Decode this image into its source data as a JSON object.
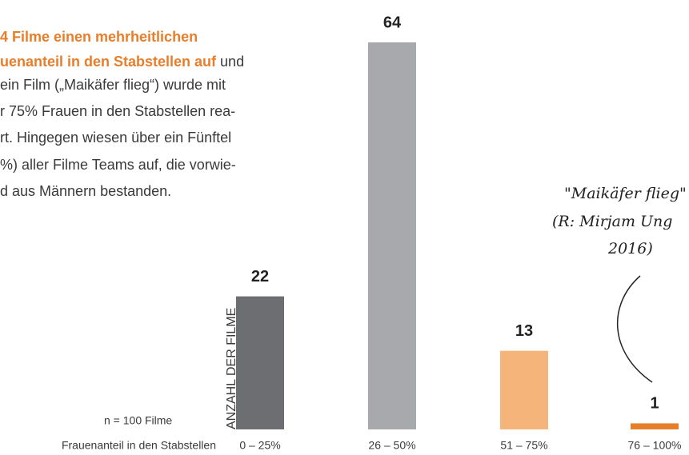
{
  "text_block": {
    "lines": [
      [
        {
          "text": "4 Filme einen mehrheitlichen",
          "bold": true
        }
      ],
      [
        {
          "text": "uenanteil in den Stabstellen auf",
          "bold": true
        },
        {
          "text": " und",
          "bold": false
        }
      ],
      [
        {
          "text": "ein Film („Maikäfer flieg“) wurde mit",
          "bold": false
        }
      ],
      [
        {
          "text": "r 75% Frauen in den Stabstellen rea-",
          "bold": false
        }
      ],
      [
        {
          "text": "rt. Hingegen wiesen über ein Fünftel",
          "bold": false
        }
      ],
      [
        {
          "text": "%) aller Filme Teams auf, die vorwie-",
          "bold": false
        }
      ],
      [
        {
          "text": "d aus Männern bestanden.",
          "bold": false
        }
      ]
    ]
  },
  "chart_data": {
    "type": "bar",
    "y_label": "ANZAHL DER FILME",
    "x_label": "Frauenanteil in den Stabstellen",
    "note": "n = 100 Filme",
    "categories": [
      "0 – 25%",
      "26 – 50%",
      "51 – 75%",
      "76 – 100%"
    ],
    "values": [
      22,
      64,
      13,
      1
    ],
    "colors": [
      "#6d6e71",
      "#a7a9ac",
      "#f5b47a",
      "#e87d2a"
    ],
    "ylim": [
      0,
      64
    ],
    "annotation": [
      "\"Maikäfer flieg\"",
      "(R: Mirjam Ung",
      "2016)"
    ]
  }
}
